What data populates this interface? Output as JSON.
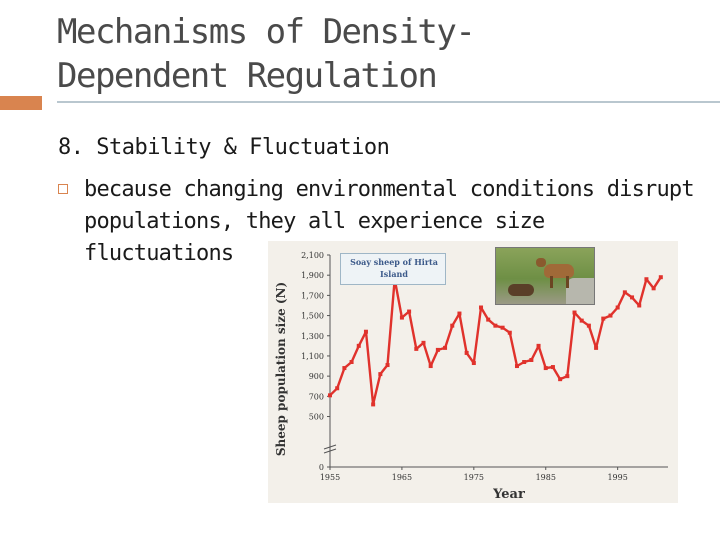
{
  "slide": {
    "title_line1": "Mechanisms of Density-",
    "title_line2": "Dependent Regulation",
    "heading": "8. Stability & Fluctuation",
    "bullet": "because changing environmental conditions disrupt populations, they all experience size fluctuations"
  },
  "colors": {
    "accent": "#d9844f",
    "series": "#e0322c",
    "title_rule": "#b9c7cf"
  },
  "chart_data": {
    "type": "line",
    "xlabel": "Year",
    "ylabel": "Sheep population size (N)",
    "inset_label_line1": "Soay sheep of Hirta",
    "inset_label_line2": "Island",
    "xlim": [
      1955,
      2002
    ],
    "ylim": [
      0,
      2100
    ],
    "x_ticks": [
      "1955",
      "1965",
      "1975",
      "1985",
      "1995"
    ],
    "y_ticks": [
      "0",
      "500",
      "700",
      "900",
      "1,100",
      "1,300",
      "1,500",
      "1,700",
      "1,900",
      "2,100"
    ],
    "series": [
      {
        "x": [
          1955,
          1956,
          1957,
          1958,
          1959,
          1960,
          1961,
          1962,
          1963,
          1964,
          1965,
          1966,
          1967,
          1968,
          1969,
          1970,
          1971,
          1972,
          1973,
          1974,
          1975,
          1976,
          1977,
          1978,
          1979,
          1980,
          1981,
          1982,
          1983,
          1984,
          1985,
          1986,
          1987,
          1988,
          1989,
          1990,
          1991,
          1992,
          1993,
          1994,
          1995,
          1996,
          1997,
          1998,
          1999,
          2000,
          2001
        ],
        "values": [
          710,
          780,
          980,
          1040,
          1200,
          1340,
          620,
          920,
          1010,
          1860,
          1480,
          1540,
          1170,
          1230,
          1000,
          1160,
          1180,
          1400,
          1520,
          1130,
          1030,
          1580,
          1460,
          1400,
          1380,
          1330,
          1000,
          1040,
          1060,
          1200,
          980,
          990,
          870,
          900,
          1530,
          1450,
          1400,
          1180,
          1470,
          1500,
          1580,
          1730,
          1680,
          1600,
          1860,
          1770,
          1880
        ]
      }
    ]
  }
}
